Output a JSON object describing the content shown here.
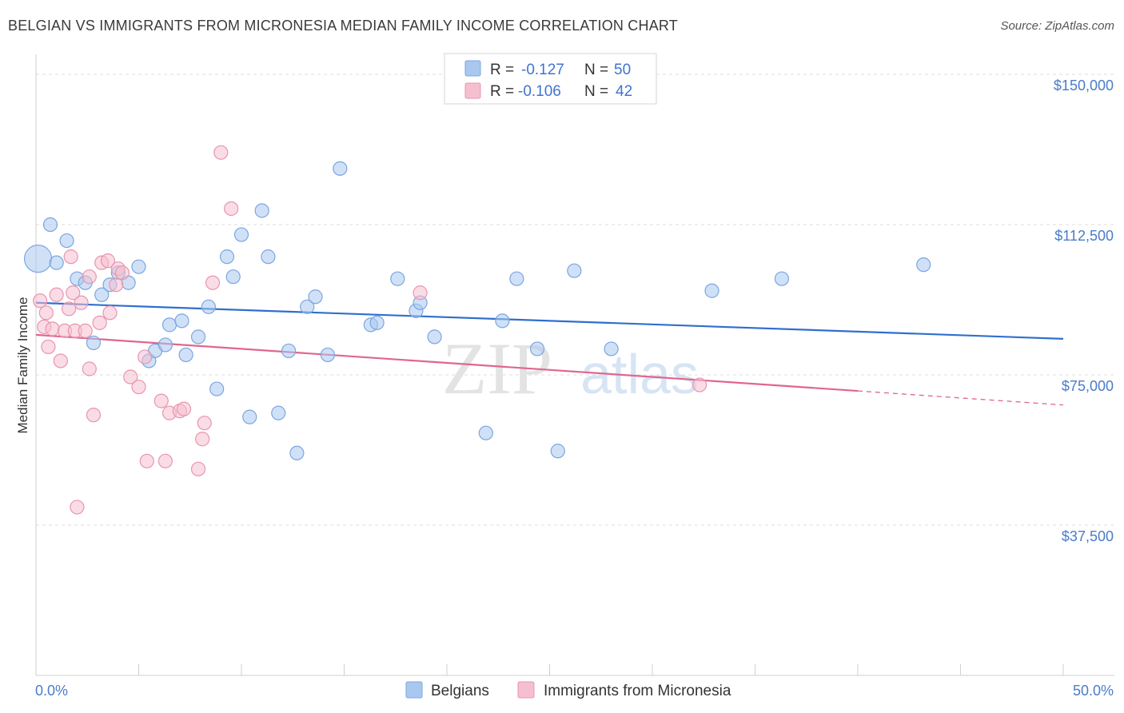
{
  "title": "BELGIAN VS IMMIGRANTS FROM MICRONESIA MEDIAN FAMILY INCOME CORRELATION CHART",
  "source": "Source: ZipAtlas.com",
  "watermark": {
    "zip": "ZIP",
    "atlas": "atlas"
  },
  "colors": {
    "blue_fill": "#a9c8f0",
    "blue_stroke": "#7aa6e0",
    "blue_line": "#2f6fcf",
    "pink_fill": "#f5bfd0",
    "pink_stroke": "#e895b0",
    "pink_line": "#e0668f",
    "tick_text": "#4a7cc9",
    "grid": "#dcdcdc"
  },
  "stats_legend": [
    {
      "r_label": "R =",
      "r_value": "-0.127",
      "n_label": "N =",
      "n_value": "50"
    },
    {
      "r_label": "R =",
      "r_value": "-0.106",
      "n_label": "N =",
      "n_value": "42"
    }
  ],
  "chart_data": {
    "type": "scatter",
    "xlabel": "",
    "ylabel": "Median Family Income",
    "xlim": [
      0,
      50
    ],
    "ylim": [
      0,
      153000
    ],
    "x_tick_labels": [
      "0.0%",
      "50.0%"
    ],
    "y_ticks": [
      37500,
      75000,
      112500,
      150000
    ],
    "y_tick_labels": [
      "$37,500",
      "$75,000",
      "$112,500",
      "$150,000"
    ],
    "grid": true,
    "legend_position": "bottom",
    "series": [
      {
        "name": "Belgians",
        "color": "blue",
        "trend": {
          "x": [
            0,
            50
          ],
          "y": [
            93000,
            84000
          ],
          "dashed_from": null
        },
        "points": [
          {
            "x": 0.1,
            "y": 104000,
            "big": true
          },
          {
            "x": 0.7,
            "y": 112500
          },
          {
            "x": 1.0,
            "y": 103000
          },
          {
            "x": 1.5,
            "y": 108500
          },
          {
            "x": 2.0,
            "y": 99000
          },
          {
            "x": 2.4,
            "y": 98000
          },
          {
            "x": 2.8,
            "y": 83000
          },
          {
            "x": 3.2,
            "y": 95000
          },
          {
            "x": 3.6,
            "y": 97500
          },
          {
            "x": 4.0,
            "y": 100500
          },
          {
            "x": 4.5,
            "y": 98000
          },
          {
            "x": 5.0,
            "y": 102000
          },
          {
            "x": 5.5,
            "y": 78500
          },
          {
            "x": 5.8,
            "y": 81000
          },
          {
            "x": 6.3,
            "y": 82500
          },
          {
            "x": 6.5,
            "y": 87500
          },
          {
            "x": 7.1,
            "y": 88500
          },
          {
            "x": 7.3,
            "y": 80000
          },
          {
            "x": 7.9,
            "y": 84500
          },
          {
            "x": 8.4,
            "y": 92000
          },
          {
            "x": 8.8,
            "y": 71500
          },
          {
            "x": 9.3,
            "y": 104500
          },
          {
            "x": 9.6,
            "y": 99500
          },
          {
            "x": 10.0,
            "y": 110000
          },
          {
            "x": 10.4,
            "y": 64500
          },
          {
            "x": 11.0,
            "y": 116000
          },
          {
            "x": 11.3,
            "y": 104500
          },
          {
            "x": 11.8,
            "y": 65500
          },
          {
            "x": 12.3,
            "y": 81000
          },
          {
            "x": 12.7,
            "y": 55500
          },
          {
            "x": 13.2,
            "y": 92000
          },
          {
            "x": 13.6,
            "y": 94500
          },
          {
            "x": 14.2,
            "y": 80000
          },
          {
            "x": 14.8,
            "y": 126500
          },
          {
            "x": 16.3,
            "y": 87500
          },
          {
            "x": 16.6,
            "y": 88000
          },
          {
            "x": 17.6,
            "y": 99000
          },
          {
            "x": 18.5,
            "y": 91000
          },
          {
            "x": 18.7,
            "y": 93000
          },
          {
            "x": 19.4,
            "y": 84500
          },
          {
            "x": 21.9,
            "y": 60500
          },
          {
            "x": 22.7,
            "y": 88500
          },
          {
            "x": 23.4,
            "y": 99000
          },
          {
            "x": 24.4,
            "y": 81500
          },
          {
            "x": 25.4,
            "y": 56000
          },
          {
            "x": 26.2,
            "y": 101000
          },
          {
            "x": 28.0,
            "y": 81500
          },
          {
            "x": 32.9,
            "y": 96000
          },
          {
            "x": 36.3,
            "y": 99000
          },
          {
            "x": 43.2,
            "y": 102500
          }
        ]
      },
      {
        "name": "Immigrants from Micronesia",
        "color": "pink",
        "trend": {
          "x": [
            0,
            50
          ],
          "y": [
            85000,
            67500
          ],
          "dashed_from": 40
        },
        "points": [
          {
            "x": 0.2,
            "y": 93500
          },
          {
            "x": 0.4,
            "y": 87000
          },
          {
            "x": 0.5,
            "y": 90500
          },
          {
            "x": 0.6,
            "y": 82000
          },
          {
            "x": 0.8,
            "y": 86500
          },
          {
            "x": 1.0,
            "y": 95000
          },
          {
            "x": 1.2,
            "y": 78500
          },
          {
            "x": 1.4,
            "y": 86000
          },
          {
            "x": 1.6,
            "y": 91500
          },
          {
            "x": 1.7,
            "y": 104500
          },
          {
            "x": 1.8,
            "y": 95500
          },
          {
            "x": 1.9,
            "y": 86000
          },
          {
            "x": 2.0,
            "y": 42000
          },
          {
            "x": 2.2,
            "y": 93000
          },
          {
            "x": 2.4,
            "y": 86000
          },
          {
            "x": 2.6,
            "y": 99500
          },
          {
            "x": 2.6,
            "y": 76500
          },
          {
            "x": 2.8,
            "y": 65000
          },
          {
            "x": 3.1,
            "y": 88000
          },
          {
            "x": 3.2,
            "y": 103000
          },
          {
            "x": 3.5,
            "y": 103500
          },
          {
            "x": 3.6,
            "y": 90500
          },
          {
            "x": 3.9,
            "y": 97500
          },
          {
            "x": 4.0,
            "y": 101500
          },
          {
            "x": 4.2,
            "y": 100500
          },
          {
            "x": 4.6,
            "y": 74500
          },
          {
            "x": 5.0,
            "y": 72000
          },
          {
            "x": 5.3,
            "y": 79500
          },
          {
            "x": 5.4,
            "y": 53500
          },
          {
            "x": 6.1,
            "y": 68500
          },
          {
            "x": 6.3,
            "y": 53500
          },
          {
            "x": 6.5,
            "y": 65500
          },
          {
            "x": 7.0,
            "y": 66000
          },
          {
            "x": 7.2,
            "y": 66500
          },
          {
            "x": 7.9,
            "y": 51500
          },
          {
            "x": 8.1,
            "y": 59000
          },
          {
            "x": 8.2,
            "y": 63000
          },
          {
            "x": 8.6,
            "y": 98000
          },
          {
            "x": 9.0,
            "y": 130500
          },
          {
            "x": 9.5,
            "y": 116500
          },
          {
            "x": 18.7,
            "y": 95500
          },
          {
            "x": 32.3,
            "y": 72500
          }
        ]
      }
    ]
  }
}
